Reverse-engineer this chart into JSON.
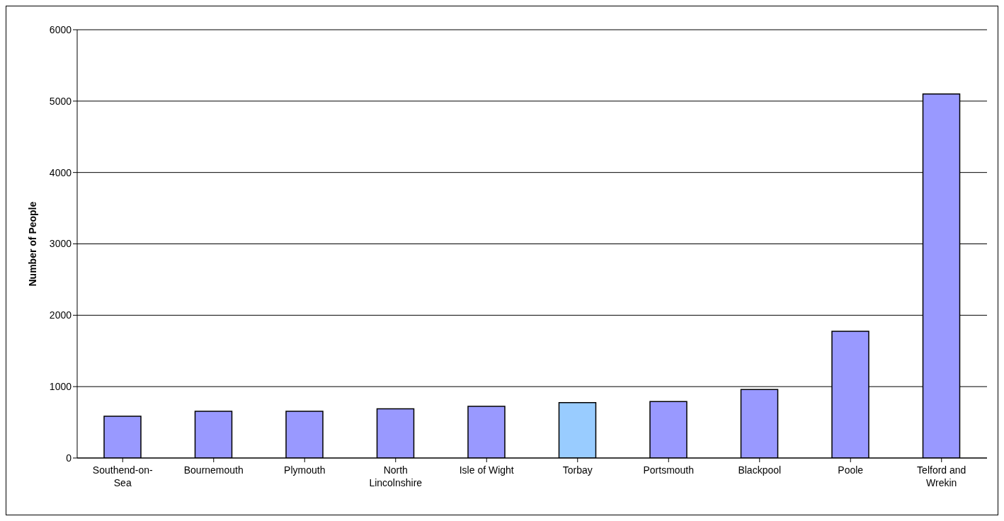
{
  "chart_data": {
    "type": "bar",
    "ylabel": "Number of People",
    "categories": [
      "Southend-on-Sea",
      "Bournemouth",
      "Plymouth",
      "North Lincolnshire",
      "Isle of Wight",
      "Torbay",
      "Portsmouth",
      "Blackpool",
      "Poole",
      "Telford and Wrekin"
    ],
    "values": [
      585,
      655,
      655,
      690,
      725,
      775,
      790,
      960,
      1775,
      5100
    ],
    "colors": [
      "#9999ff",
      "#9999ff",
      "#9999ff",
      "#9999ff",
      "#9999ff",
      "#99ccff",
      "#9999ff",
      "#9999ff",
      "#9999ff",
      "#9999ff"
    ],
    "ylim": [
      0,
      6000
    ],
    "yticks": [
      0,
      1000,
      2000,
      3000,
      4000,
      5000,
      6000
    ],
    "grid": "y",
    "legend": false
  }
}
